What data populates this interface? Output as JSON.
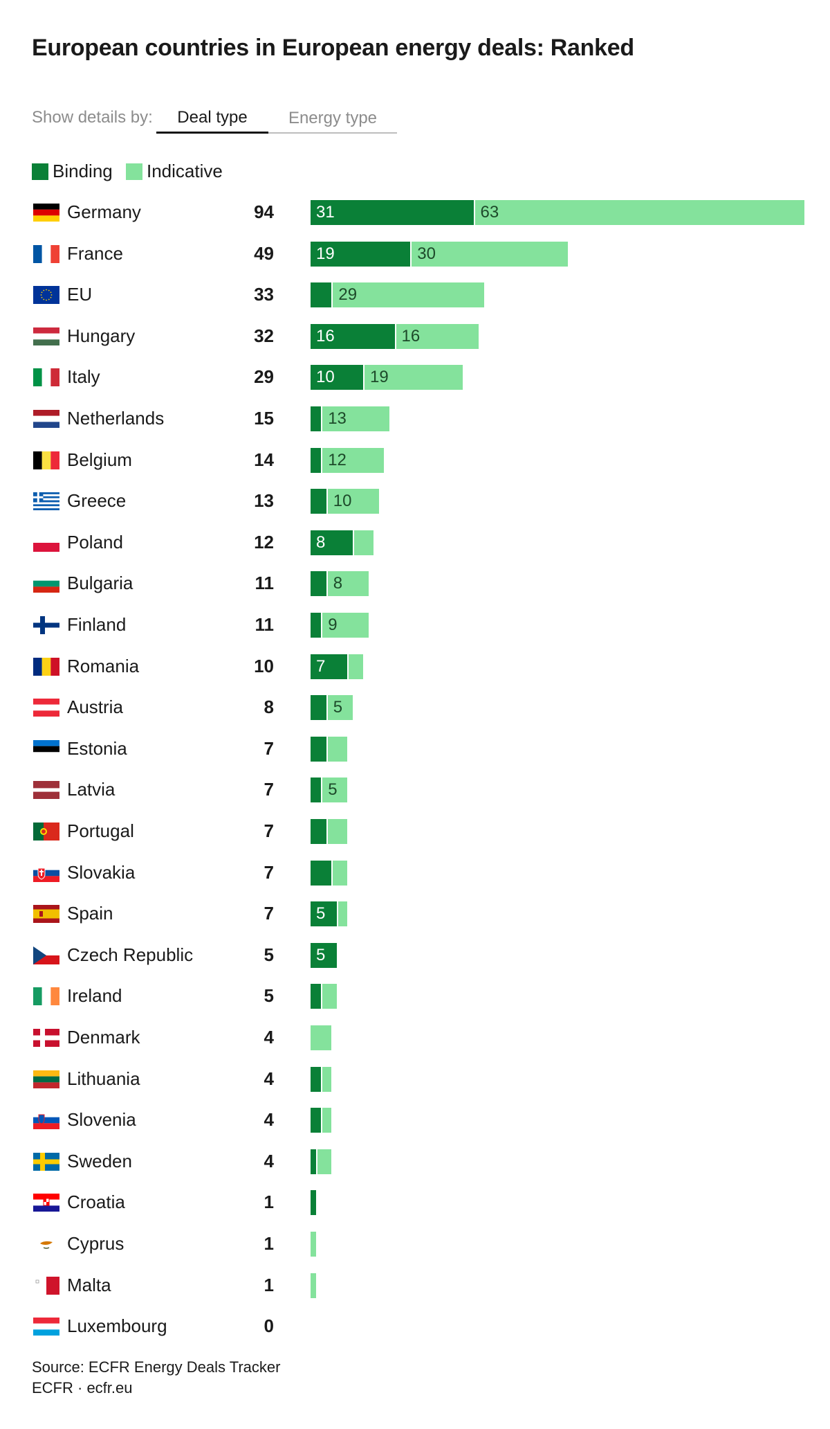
{
  "title": "European countries in European energy deals: Ranked",
  "controls": {
    "label": "Show details by:",
    "tabs": [
      {
        "label": "Deal type",
        "active": true
      },
      {
        "label": "Energy type",
        "active": false
      }
    ]
  },
  "colors": {
    "binding": "#0a8037",
    "indicative": "#84e29c"
  },
  "chart_data": {
    "type": "bar",
    "orientation": "horizontal",
    "stacked": true,
    "title": "European countries in European energy deals: Ranked",
    "xlim": [
      0,
      94
    ],
    "categories": [
      "Germany",
      "France",
      "EU",
      "Hungary",
      "Italy",
      "Netherlands",
      "Belgium",
      "Greece",
      "Poland",
      "Bulgaria",
      "Finland",
      "Romania",
      "Austria",
      "Estonia",
      "Latvia",
      "Portugal",
      "Slovakia",
      "Spain",
      "Czech Republic",
      "Ireland",
      "Denmark",
      "Lithuania",
      "Slovenia",
      "Sweden",
      "Croatia",
      "Cyprus",
      "Malta",
      "Luxembourg"
    ],
    "totals": [
      94,
      49,
      33,
      32,
      29,
      15,
      14,
      13,
      12,
      11,
      11,
      10,
      8,
      7,
      7,
      7,
      7,
      7,
      5,
      5,
      4,
      4,
      4,
      4,
      1,
      1,
      1,
      0
    ],
    "series": [
      {
        "name": "Binding",
        "values": [
          31,
          19,
          4,
          16,
          10,
          2,
          2,
          3,
          8,
          3,
          2,
          7,
          3,
          3,
          2,
          3,
          4,
          5,
          5,
          2,
          0,
          2,
          2,
          1,
          1,
          0,
          0,
          0
        ]
      },
      {
        "name": "Indicative",
        "values": [
          63,
          30,
          29,
          16,
          19,
          13,
          12,
          10,
          4,
          8,
          9,
          3,
          5,
          4,
          5,
          4,
          3,
          2,
          0,
          3,
          4,
          2,
          2,
          3,
          0,
          1,
          1,
          0
        ]
      }
    ],
    "labels_shown": [
      [
        true,
        true
      ],
      [
        true,
        true
      ],
      [
        false,
        true
      ],
      [
        true,
        true
      ],
      [
        true,
        true
      ],
      [
        false,
        true
      ],
      [
        false,
        true
      ],
      [
        false,
        true
      ],
      [
        true,
        false
      ],
      [
        false,
        true
      ],
      [
        false,
        true
      ],
      [
        true,
        false
      ],
      [
        false,
        true
      ],
      [
        false,
        false
      ],
      [
        false,
        true
      ],
      [
        false,
        false
      ],
      [
        false,
        false
      ],
      [
        true,
        false
      ],
      [
        true,
        false
      ],
      [
        false,
        false
      ],
      [
        false,
        false
      ],
      [
        false,
        false
      ],
      [
        false,
        false
      ],
      [
        false,
        false
      ],
      [
        false,
        false
      ],
      [
        false,
        false
      ],
      [
        false,
        false
      ],
      [
        false,
        false
      ]
    ],
    "legend": "top-left",
    "grid": false
  },
  "source": {
    "line1": "Source: ECFR Energy Deals Tracker",
    "line2": "ECFR · ecfr.eu"
  }
}
